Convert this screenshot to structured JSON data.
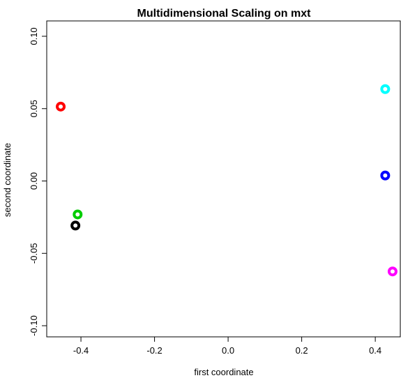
{
  "chart_data": {
    "type": "scatter",
    "title": "Multidimensional Scaling on mxt",
    "xlabel": "first coordinate",
    "ylabel": "second coordinate",
    "x": [
      -0.455,
      -0.409,
      -0.415,
      0.427,
      0.427,
      0.447
    ],
    "y": [
      0.0514,
      -0.0231,
      -0.0308,
      0.0635,
      0.0038,
      -0.0625
    ],
    "colors": [
      "#ff0000",
      "#00cd00",
      "#000000",
      "#00ffff",
      "#0000ff",
      "#ff00ff"
    ],
    "xlim": [
      -0.493,
      0.468
    ],
    "ylim": [
      -0.1077,
      0.1106
    ],
    "xticks": [
      -0.4,
      -0.2,
      {
        "value": 0,
        "label": "0.0"
      },
      0.2,
      0.4
    ],
    "yticks": [
      {
        "value": -0.1,
        "label": "-0.10"
      },
      -0.05,
      {
        "value": 0,
        "label": "0.00"
      },
      0.05,
      {
        "value": 0.1,
        "label": "0.10"
      }
    ]
  }
}
